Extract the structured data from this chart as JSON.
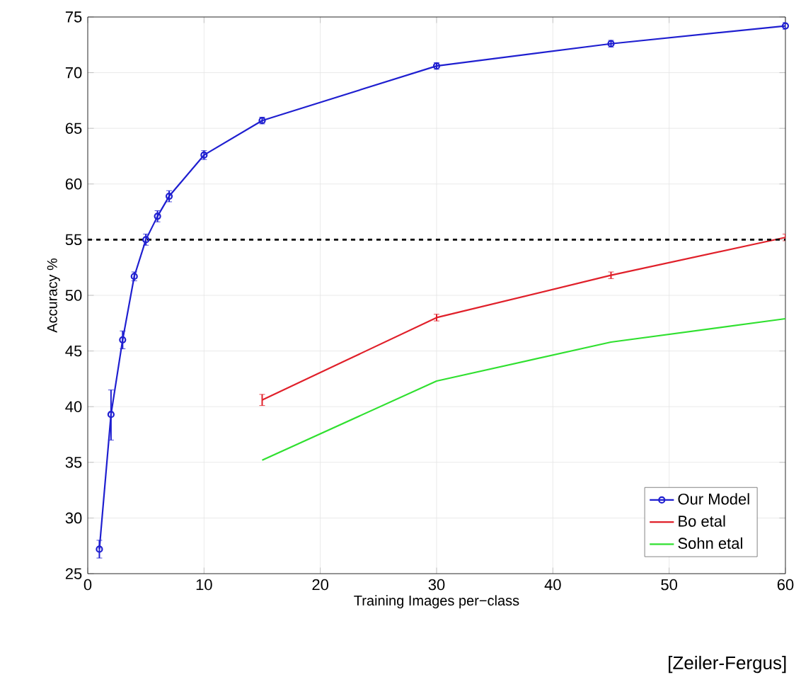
{
  "chart_data": {
    "type": "line",
    "xlabel": "Training Images per−class",
    "ylabel": "Accuracy %",
    "xlim": [
      0,
      60
    ],
    "ylim": [
      25,
      75
    ],
    "xticks": [
      0,
      10,
      20,
      30,
      40,
      50,
      60
    ],
    "yticks": [
      25,
      30,
      35,
      40,
      45,
      50,
      55,
      60,
      65,
      70,
      75
    ],
    "grid": true,
    "legend": "bottom right",
    "ref_lines": [
      {
        "axis": "y",
        "value": 55,
        "color": "#000000",
        "line_style": "dashed"
      }
    ],
    "annotations": [
      "[Zeiler-Fergus]"
    ],
    "series": [
      {
        "name": "Our Model",
        "color": "#1f1fd0",
        "marker": "circle",
        "x": [
          1,
          2,
          3,
          4,
          5,
          6,
          7,
          10,
          15,
          30,
          45,
          60
        ],
        "values": [
          27.2,
          39.3,
          46,
          51.7,
          55,
          57.1,
          58.9,
          62.6,
          65.7,
          70.6,
          72.6,
          74.2
        ],
        "errors": [
          0.8,
          [
            37,
            41.5
          ],
          0.8,
          0.4,
          0.5,
          0.5,
          0.5,
          0.4,
          0.3,
          0.3,
          0.3,
          0.3
        ]
      },
      {
        "name": "Bo etal",
        "color": "#e0202a",
        "marker": "none",
        "x": [
          15,
          30,
          45,
          60
        ],
        "values": [
          40.6,
          48,
          51.8,
          55.2
        ],
        "errors": [
          0.5,
          0.3,
          0.3,
          0.3
        ]
      },
      {
        "name": "Sohn etal",
        "color": "#30e030",
        "marker": "none",
        "x": [
          15,
          30,
          45,
          60
        ],
        "values": [
          35.2,
          42.3,
          45.8,
          47.9
        ]
      }
    ]
  }
}
